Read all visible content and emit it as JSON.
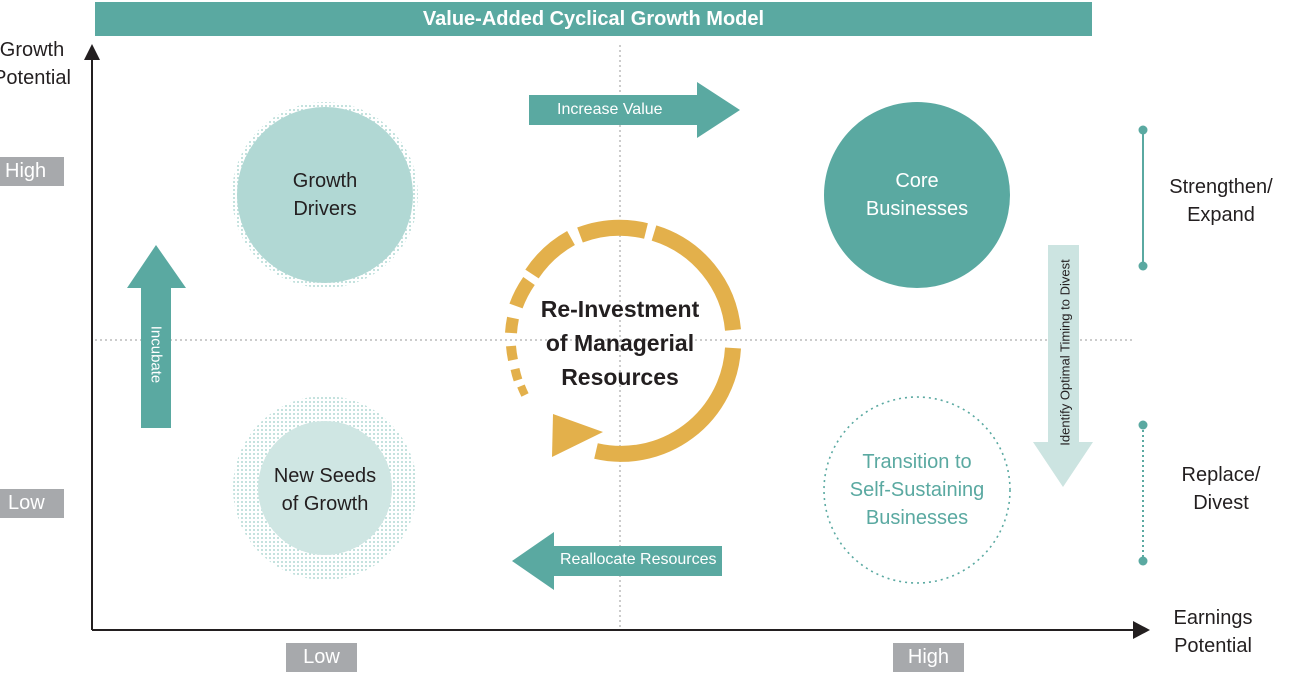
{
  "title": "Value-Added Cyclical Growth Model",
  "y_axis": {
    "label_line1": "Growth",
    "label_line2": "Potential",
    "high": "High",
    "low": "Low"
  },
  "x_axis": {
    "label_line1": "Earnings",
    "label_line2": "Potential",
    "low": "Low",
    "high": "High"
  },
  "quadrants": {
    "growth_drivers": {
      "line1": "Growth",
      "line2": "Drivers"
    },
    "core_businesses": {
      "line1": "Core",
      "line2": "Businesses"
    },
    "new_seeds": {
      "line1": "New Seeds",
      "line2": "of Growth"
    },
    "transition": {
      "line1": "Transition to",
      "line2": "Self-Sustaining",
      "line3": "Businesses"
    }
  },
  "center": {
    "line1": "Re-Investment",
    "line2": "of Managerial",
    "line3": "Resources"
  },
  "arrows": {
    "increase_value": "Increase Value",
    "reallocate": "Reallocate Resources",
    "incubate": "Incubate",
    "divest_timing": "Identify Optimal Timing to Divest"
  },
  "strategies": {
    "strengthen": {
      "line1": "Strengthen/",
      "line2": "Expand"
    },
    "replace": {
      "line1": "Replace/",
      "line2": "Divest"
    }
  },
  "colors": {
    "teal": "#5aa9a1",
    "light_teal": "#b1d8d4",
    "gold": "#e3b04b",
    "gray_tag": "#a7a9ac"
  }
}
